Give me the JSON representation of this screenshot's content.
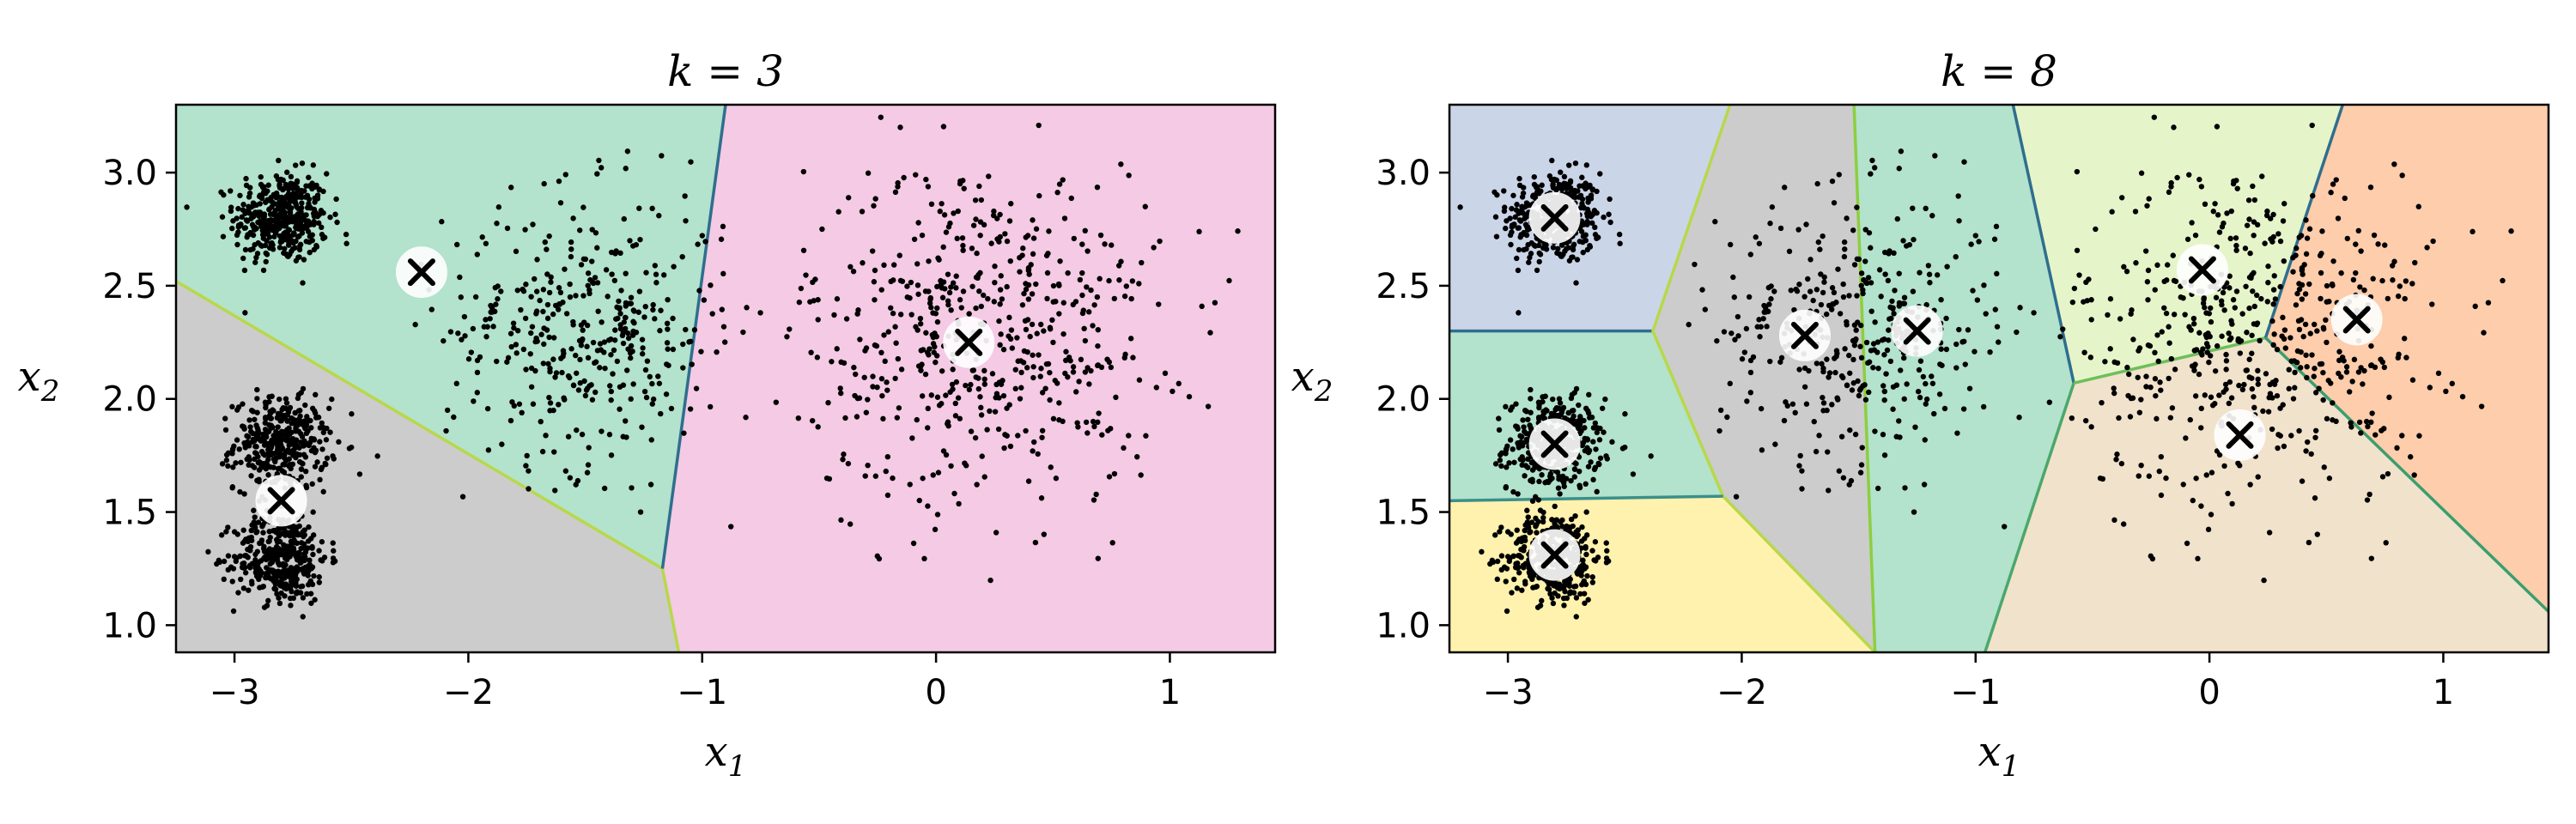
{
  "chart_data": [
    {
      "type": "scatter",
      "title": "k = 3",
      "xlabel": "x1",
      "ylabel": "x2",
      "xlim": [
        -3.25,
        1.45
      ],
      "ylim": [
        0.88,
        3.3
      ],
      "xticks": [
        -3,
        -2,
        -1,
        0,
        1
      ],
      "xtick_labels": [
        "−3",
        "−2",
        "−1",
        "0",
        "1"
      ],
      "yticks": [
        1.0,
        1.5,
        2.0,
        2.5,
        3.0
      ],
      "ytick_labels": [
        "1.0",
        "1.5",
        "2.0",
        "2.5",
        "3.0"
      ],
      "grid": false,
      "regions": [
        {
          "color": "#b3e2cd",
          "polygon": [
            [
              -3.25,
              2.52
            ],
            [
              -3.25,
              3.3
            ],
            [
              -0.9,
              3.3
            ],
            [
              -1.17,
              1.25
            ]
          ]
        },
        {
          "color": "#cccccc",
          "polygon": [
            [
              -3.25,
              0.88
            ],
            [
              -3.25,
              2.52
            ],
            [
              -1.17,
              1.25
            ],
            [
              -1.1,
              0.88
            ]
          ]
        },
        {
          "color": "#f4cae4",
          "polygon": [
            [
              -0.9,
              3.3
            ],
            [
              1.45,
              3.3
            ],
            [
              1.45,
              0.88
            ],
            [
              -1.1,
              0.88
            ],
            [
              -1.17,
              1.25
            ]
          ]
        }
      ],
      "boundaries": [
        {
          "color": "#b8d84a",
          "points": [
            [
              -3.25,
              2.52
            ],
            [
              -1.17,
              1.25
            ],
            [
              -1.1,
              0.88
            ]
          ]
        },
        {
          "color": "#2f6e8e",
          "points": [
            [
              -1.17,
              1.25
            ],
            [
              -0.9,
              3.3
            ]
          ]
        }
      ],
      "centroids": [
        [
          -2.2,
          2.56
        ],
        [
          -2.8,
          1.55
        ],
        [
          0.14,
          2.25
        ]
      ],
      "clusters": [
        {
          "center": [
            -2.8,
            2.8
          ],
          "sigma": 0.1,
          "n": 420
        },
        {
          "center": [
            -2.8,
            1.8
          ],
          "sigma": 0.1,
          "n": 380
        },
        {
          "center": [
            -2.8,
            1.3
          ],
          "sigma": 0.1,
          "n": 380
        },
        {
          "center": [
            -1.5,
            2.3
          ],
          "sigma": 0.3,
          "n": 400
        },
        {
          "center": [
            0.2,
            2.3
          ],
          "sigma": 0.38,
          "n": 560
        }
      ]
    },
    {
      "type": "scatter",
      "title": "k = 8",
      "xlabel": "x1",
      "ylabel": "x2",
      "xlim": [
        -3.25,
        1.45
      ],
      "ylim": [
        0.88,
        3.3
      ],
      "xticks": [
        -3,
        -2,
        -1,
        0,
        1
      ],
      "xtick_labels": [
        "−3",
        "−2",
        "−1",
        "0",
        "1"
      ],
      "yticks": [
        1.0,
        1.5,
        2.0,
        2.5,
        3.0
      ],
      "ytick_labels": [
        "1.0",
        "1.5",
        "2.0",
        "2.5",
        "3.0"
      ],
      "grid": false,
      "regions": [
        {
          "color": "#cbd5e8",
          "polygon": [
            [
              -3.25,
              3.3
            ],
            [
              -2.05,
              3.3
            ],
            [
              -2.38,
              2.3
            ],
            [
              -3.25,
              2.3
            ]
          ]
        },
        {
          "color": "#b3e2cd",
          "polygon": [
            [
              -3.25,
              2.3
            ],
            [
              -2.38,
              2.3
            ],
            [
              -2.08,
              1.57
            ],
            [
              -3.25,
              1.55
            ]
          ]
        },
        {
          "color": "#fff2ae",
          "polygon": [
            [
              -3.25,
              1.55
            ],
            [
              -2.08,
              1.57
            ],
            [
              -1.43,
              0.88
            ],
            [
              -3.25,
              0.88
            ]
          ]
        },
        {
          "color": "#cccccc",
          "polygon": [
            [
              -2.05,
              3.3
            ],
            [
              -1.52,
              3.3
            ],
            [
              -1.43,
              0.88
            ],
            [
              -2.08,
              1.57
            ],
            [
              -2.38,
              2.3
            ]
          ]
        },
        {
          "color": "#b3e2cd",
          "polygon": [
            [
              -1.52,
              3.3
            ],
            [
              -0.84,
              3.3
            ],
            [
              -0.58,
              2.07
            ],
            [
              -0.96,
              0.88
            ],
            [
              -1.43,
              0.88
            ]
          ]
        },
        {
          "color": "#e6f5c9",
          "polygon": [
            [
              -0.84,
              3.3
            ],
            [
              0.57,
              3.3
            ],
            [
              0.24,
              2.27
            ],
            [
              -0.58,
              2.07
            ]
          ]
        },
        {
          "color": "#fdcdac",
          "polygon": [
            [
              0.57,
              3.3
            ],
            [
              1.45,
              3.3
            ],
            [
              1.45,
              1.06
            ],
            [
              0.24,
              2.27
            ]
          ]
        },
        {
          "color": "#f1e2cc",
          "polygon": [
            [
              -0.58,
              2.07
            ],
            [
              0.24,
              2.27
            ],
            [
              1.45,
              1.06
            ],
            [
              1.45,
              0.88
            ],
            [
              -0.96,
              0.88
            ]
          ]
        }
      ],
      "boundaries": [
        {
          "color": "#2f6e8e",
          "points": [
            [
              -3.25,
              2.3
            ],
            [
              -2.38,
              2.3
            ]
          ]
        },
        {
          "color": "#b8d84a",
          "points": [
            [
              -2.05,
              3.3
            ],
            [
              -2.38,
              2.3
            ],
            [
              -2.08,
              1.57
            ],
            [
              -1.43,
              0.88
            ]
          ]
        },
        {
          "color": "#3a8f8a",
          "points": [
            [
              -3.25,
              1.55
            ],
            [
              -2.08,
              1.57
            ]
          ]
        },
        {
          "color": "#8ccf3f",
          "points": [
            [
              -1.52,
              3.3
            ],
            [
              -1.43,
              0.88
            ]
          ]
        },
        {
          "color": "#2f6e8e",
          "points": [
            [
              -0.84,
              3.3
            ],
            [
              -0.58,
              2.07
            ]
          ]
        },
        {
          "color": "#4aa86a",
          "points": [
            [
              -0.58,
              2.07
            ],
            [
              -0.96,
              0.88
            ]
          ]
        },
        {
          "color": "#6dbf5a",
          "points": [
            [
              -0.58,
              2.07
            ],
            [
              0.24,
              2.27
            ]
          ]
        },
        {
          "color": "#2f6e8e",
          "points": [
            [
              0.24,
              2.27
            ],
            [
              0.57,
              3.3
            ]
          ]
        },
        {
          "color": "#3a9e6f",
          "points": [
            [
              0.24,
              2.27
            ],
            [
              1.45,
              1.06
            ]
          ]
        }
      ],
      "centroids": [
        [
          -2.8,
          2.8
        ],
        [
          -2.8,
          1.8
        ],
        [
          -2.8,
          1.31
        ],
        [
          -1.73,
          2.28
        ],
        [
          -1.25,
          2.3
        ],
        [
          -0.03,
          2.57
        ],
        [
          0.63,
          2.35
        ],
        [
          0.13,
          1.84
        ]
      ],
      "clusters": [
        {
          "center": [
            -2.8,
            2.8
          ],
          "sigma": 0.1,
          "n": 420
        },
        {
          "center": [
            -2.8,
            1.8
          ],
          "sigma": 0.1,
          "n": 380
        },
        {
          "center": [
            -2.8,
            1.3
          ],
          "sigma": 0.1,
          "n": 380
        },
        {
          "center": [
            -1.5,
            2.3
          ],
          "sigma": 0.3,
          "n": 400
        },
        {
          "center": [
            0.2,
            2.3
          ],
          "sigma": 0.38,
          "n": 560
        }
      ]
    }
  ],
  "colors": {
    "points": "#000000",
    "centroid_fill": "#ffffff",
    "centroid_mark": "#000000"
  }
}
